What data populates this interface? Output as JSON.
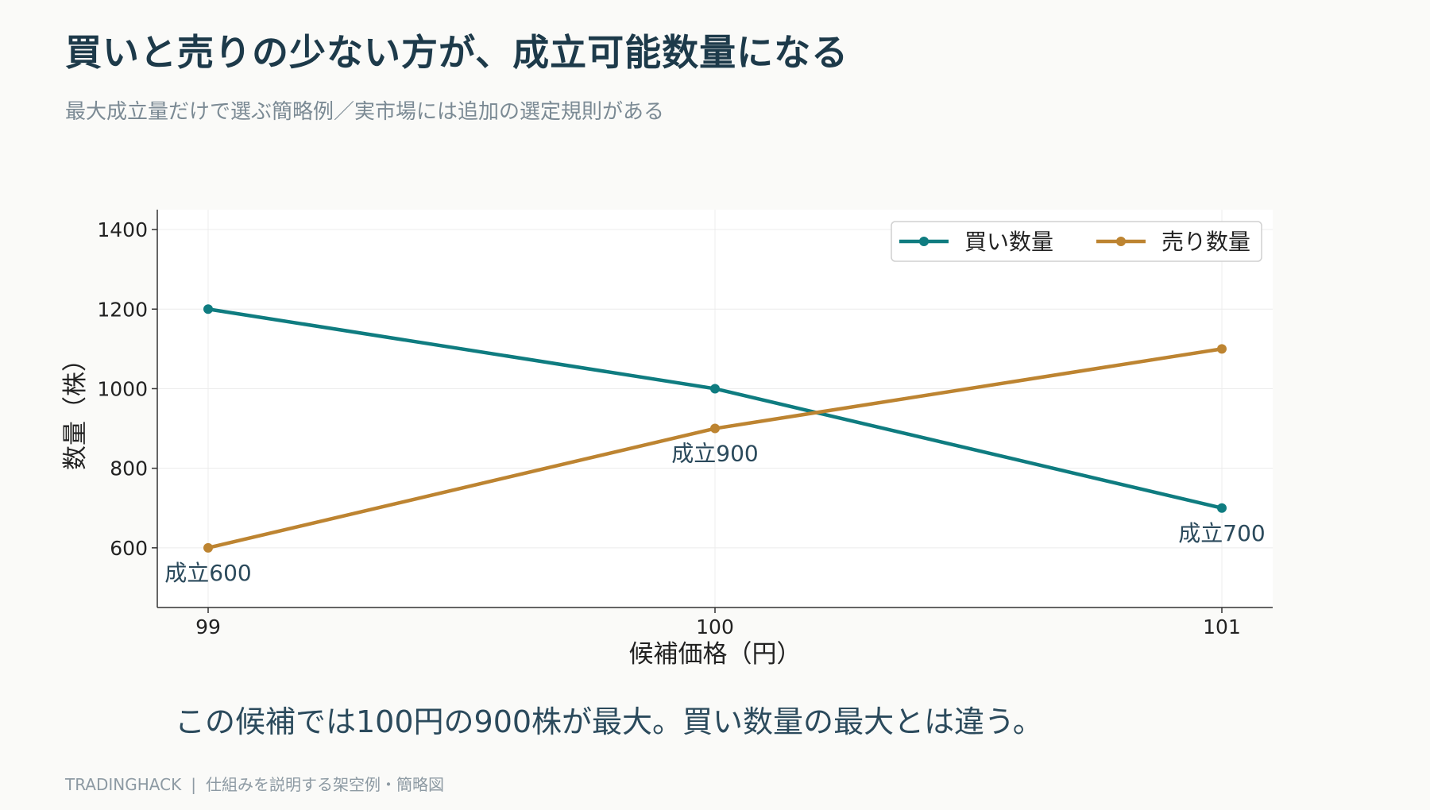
{
  "header": {
    "title": "買いと売りの少ない方が、成立可能数量になる",
    "subtitle": "最大成立量だけで選ぶ簡略例／実市場には追加の選定規則がある"
  },
  "chart_data": {
    "type": "line",
    "x": [
      99,
      100,
      101
    ],
    "tick_labels": [
      "99",
      "100",
      "101"
    ],
    "xlabel": "候補価格（円）",
    "ylabel": "数量（株）",
    "ylim": [
      450,
      1450
    ],
    "yticks": [
      600,
      800,
      1000,
      1200,
      1400
    ],
    "grid": true,
    "legend_position": "top-right",
    "series": [
      {
        "name": "買い数量",
        "values": [
          1200,
          1000,
          700
        ],
        "color": "#0f7c80"
      },
      {
        "name": "売り数量",
        "values": [
          600,
          900,
          1100
        ],
        "color": "#bd8431"
      }
    ],
    "annotations": [
      {
        "text": "成立600",
        "x": 99,
        "y": 600
      },
      {
        "text": "成立900",
        "x": 100,
        "y": 900
      },
      {
        "text": "成立700",
        "x": 101,
        "y": 700
      }
    ]
  },
  "caption": "この候補では100円の900株が最大。買い数量の最大とは違う。",
  "footer": {
    "brand": "TRADINGHACK",
    "separator": "|",
    "note": "仕組みを説明する架空例・簡略図"
  }
}
